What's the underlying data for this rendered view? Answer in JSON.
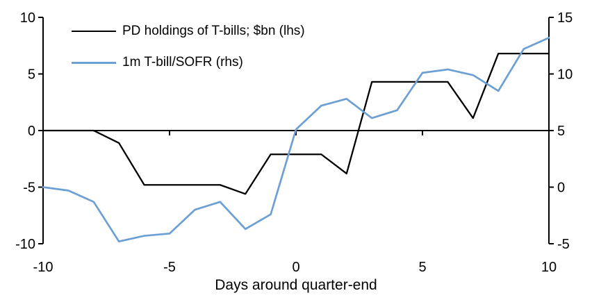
{
  "chart_data": {
    "type": "line",
    "title": "",
    "xlabel": "Days around quarter-end",
    "ylabel_left": "",
    "ylabel_right": "",
    "grid": false,
    "legend_position": "top-left",
    "x": [
      -10,
      -9,
      -8,
      -7,
      -6,
      -5,
      -4,
      -3,
      -2,
      -1,
      0,
      1,
      2,
      3,
      4,
      5,
      6,
      7,
      8,
      9,
      10
    ],
    "x_ticks": [
      -10,
      -5,
      0,
      5,
      10
    ],
    "left_axis": {
      "min": -10,
      "max": 10,
      "ticks": [
        10,
        5,
        0,
        -5,
        -10
      ]
    },
    "right_axis": {
      "min": -5,
      "max": 15,
      "ticks": [
        15,
        10,
        5,
        0,
        -5
      ]
    },
    "series": [
      {
        "name": "PD holdings of T-bills; $bn (lhs)",
        "axis": "left",
        "color": "#000000",
        "values": [
          0,
          0,
          0,
          -1.1,
          -4.8,
          -4.8,
          -4.8,
          -4.8,
          -5.6,
          -2.1,
          -2.1,
          -2.1,
          -3.8,
          4.3,
          4.3,
          4.3,
          4.3,
          1.1,
          6.8,
          6.8,
          6.8
        ]
      },
      {
        "name": "1m T-bill/SOFR (rhs)",
        "axis": "right",
        "color": "#6C9FD4",
        "values": [
          0,
          -0.3,
          -1.3,
          -4.8,
          -4.3,
          -4.1,
          -2.0,
          -1.3,
          -3.7,
          -2.4,
          5.1,
          7.2,
          7.8,
          6.1,
          6.8,
          10.1,
          10.4,
          9.9,
          8.5,
          12.2,
          13.2
        ]
      }
    ]
  }
}
